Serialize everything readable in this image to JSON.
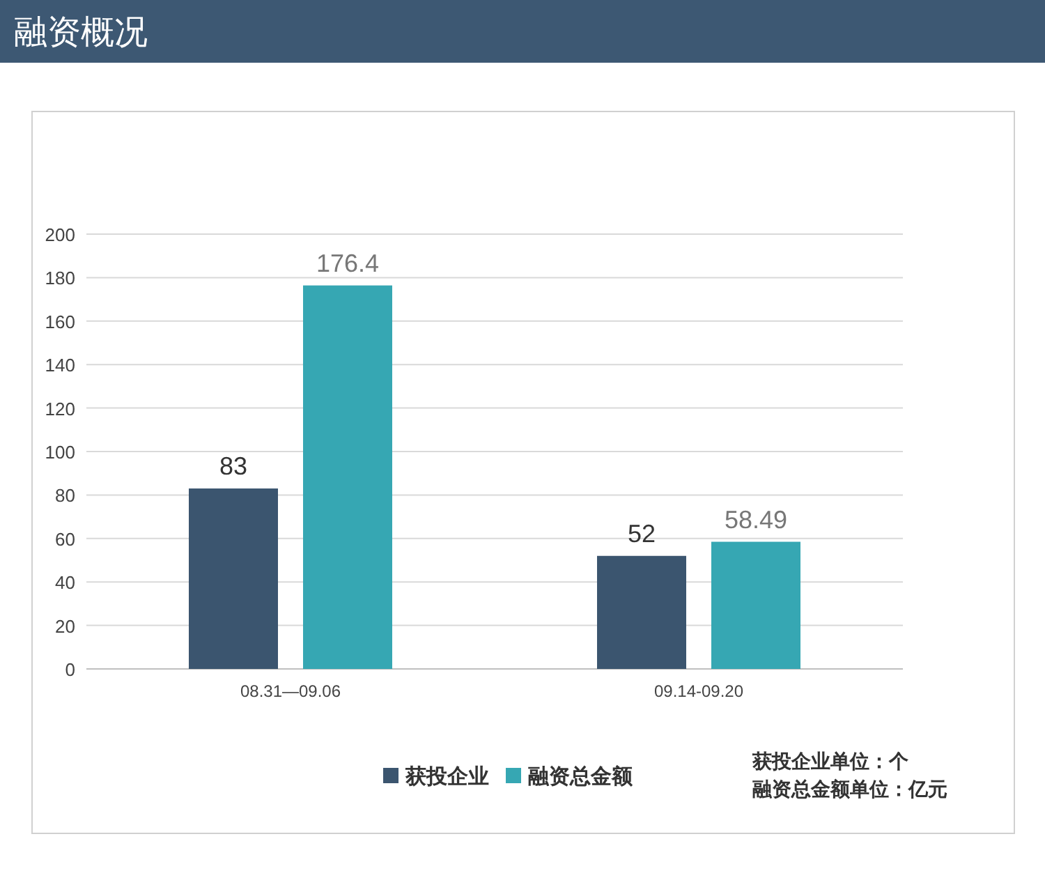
{
  "chart_data": {
    "type": "bar",
    "title": "融资概况",
    "categories": [
      "08.31—09.06",
      "09.14-09.20"
    ],
    "series": [
      {
        "name": "获投企业",
        "color": "#3b556f",
        "values": [
          83,
          52
        ]
      },
      {
        "name": "融资总金额",
        "color": "#36a7b3",
        "values": [
          176.4,
          58.49
        ]
      }
    ],
    "ylim": [
      0,
      200
    ],
    "yticks": [
      0,
      20,
      40,
      60,
      80,
      100,
      120,
      140,
      160,
      180,
      200
    ],
    "grid": "y",
    "legend": "bottom",
    "data_labels": true,
    "annotations": [
      "获投企业单位：个",
      "融资总金额单位：亿元"
    ]
  }
}
